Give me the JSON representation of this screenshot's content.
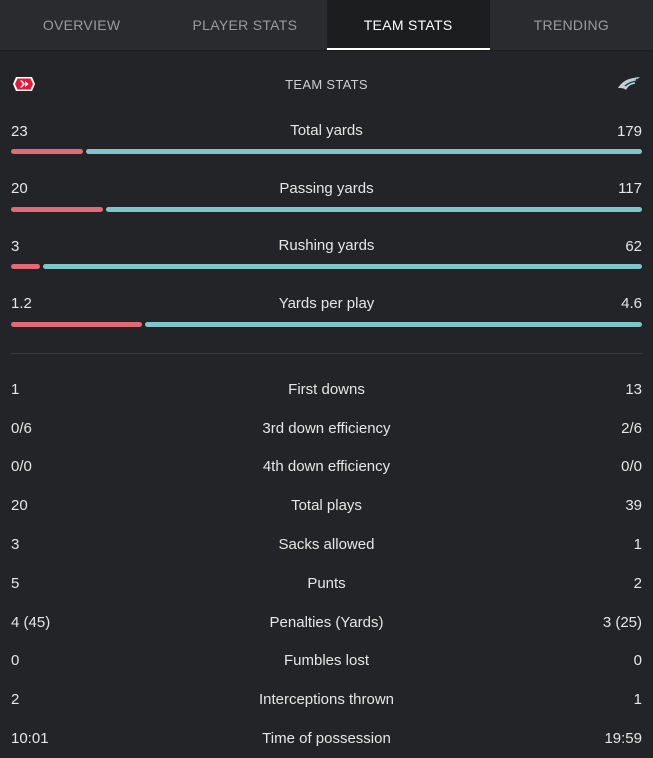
{
  "tabs": [
    {
      "label": "OVERVIEW",
      "active": false
    },
    {
      "label": "PLAYER STATS",
      "active": false
    },
    {
      "label": "TEAM STATS",
      "active": true
    },
    {
      "label": "TRENDING",
      "active": false
    }
  ],
  "header": {
    "title": "TEAM STATS",
    "home_logo": "chiefs-logo-icon",
    "away_logo": "eagles-logo-icon"
  },
  "colors": {
    "home": "#e16a76",
    "away": "#7ec6c9"
  },
  "bar_stats": [
    {
      "label": "Total yards",
      "home": "23",
      "away": "179",
      "home_share": 0.114
    },
    {
      "label": "Passing yards",
      "home": "20",
      "away": "117",
      "home_share": 0.146
    },
    {
      "label": "Rushing yards",
      "home": "3",
      "away": "62",
      "home_share": 0.046
    },
    {
      "label": "Yards per play",
      "home": "1.2",
      "away": "4.6",
      "home_share": 0.207
    }
  ],
  "stats": [
    {
      "label": "First downs",
      "home": "1",
      "away": "13"
    },
    {
      "label": "3rd down efficiency",
      "home": "0/6",
      "away": "2/6"
    },
    {
      "label": "4th down efficiency",
      "home": "0/0",
      "away": "0/0"
    },
    {
      "label": "Total plays",
      "home": "20",
      "away": "39"
    },
    {
      "label": "Sacks allowed",
      "home": "3",
      "away": "1"
    },
    {
      "label": "Punts",
      "home": "5",
      "away": "2"
    },
    {
      "label": "Penalties (Yards)",
      "home": "4 (45)",
      "away": "3 (25)"
    },
    {
      "label": "Fumbles lost",
      "home": "0",
      "away": "0"
    },
    {
      "label": "Interceptions thrown",
      "home": "2",
      "away": "1"
    },
    {
      "label": "Time of possession",
      "home": "10:01",
      "away": "19:59"
    }
  ]
}
